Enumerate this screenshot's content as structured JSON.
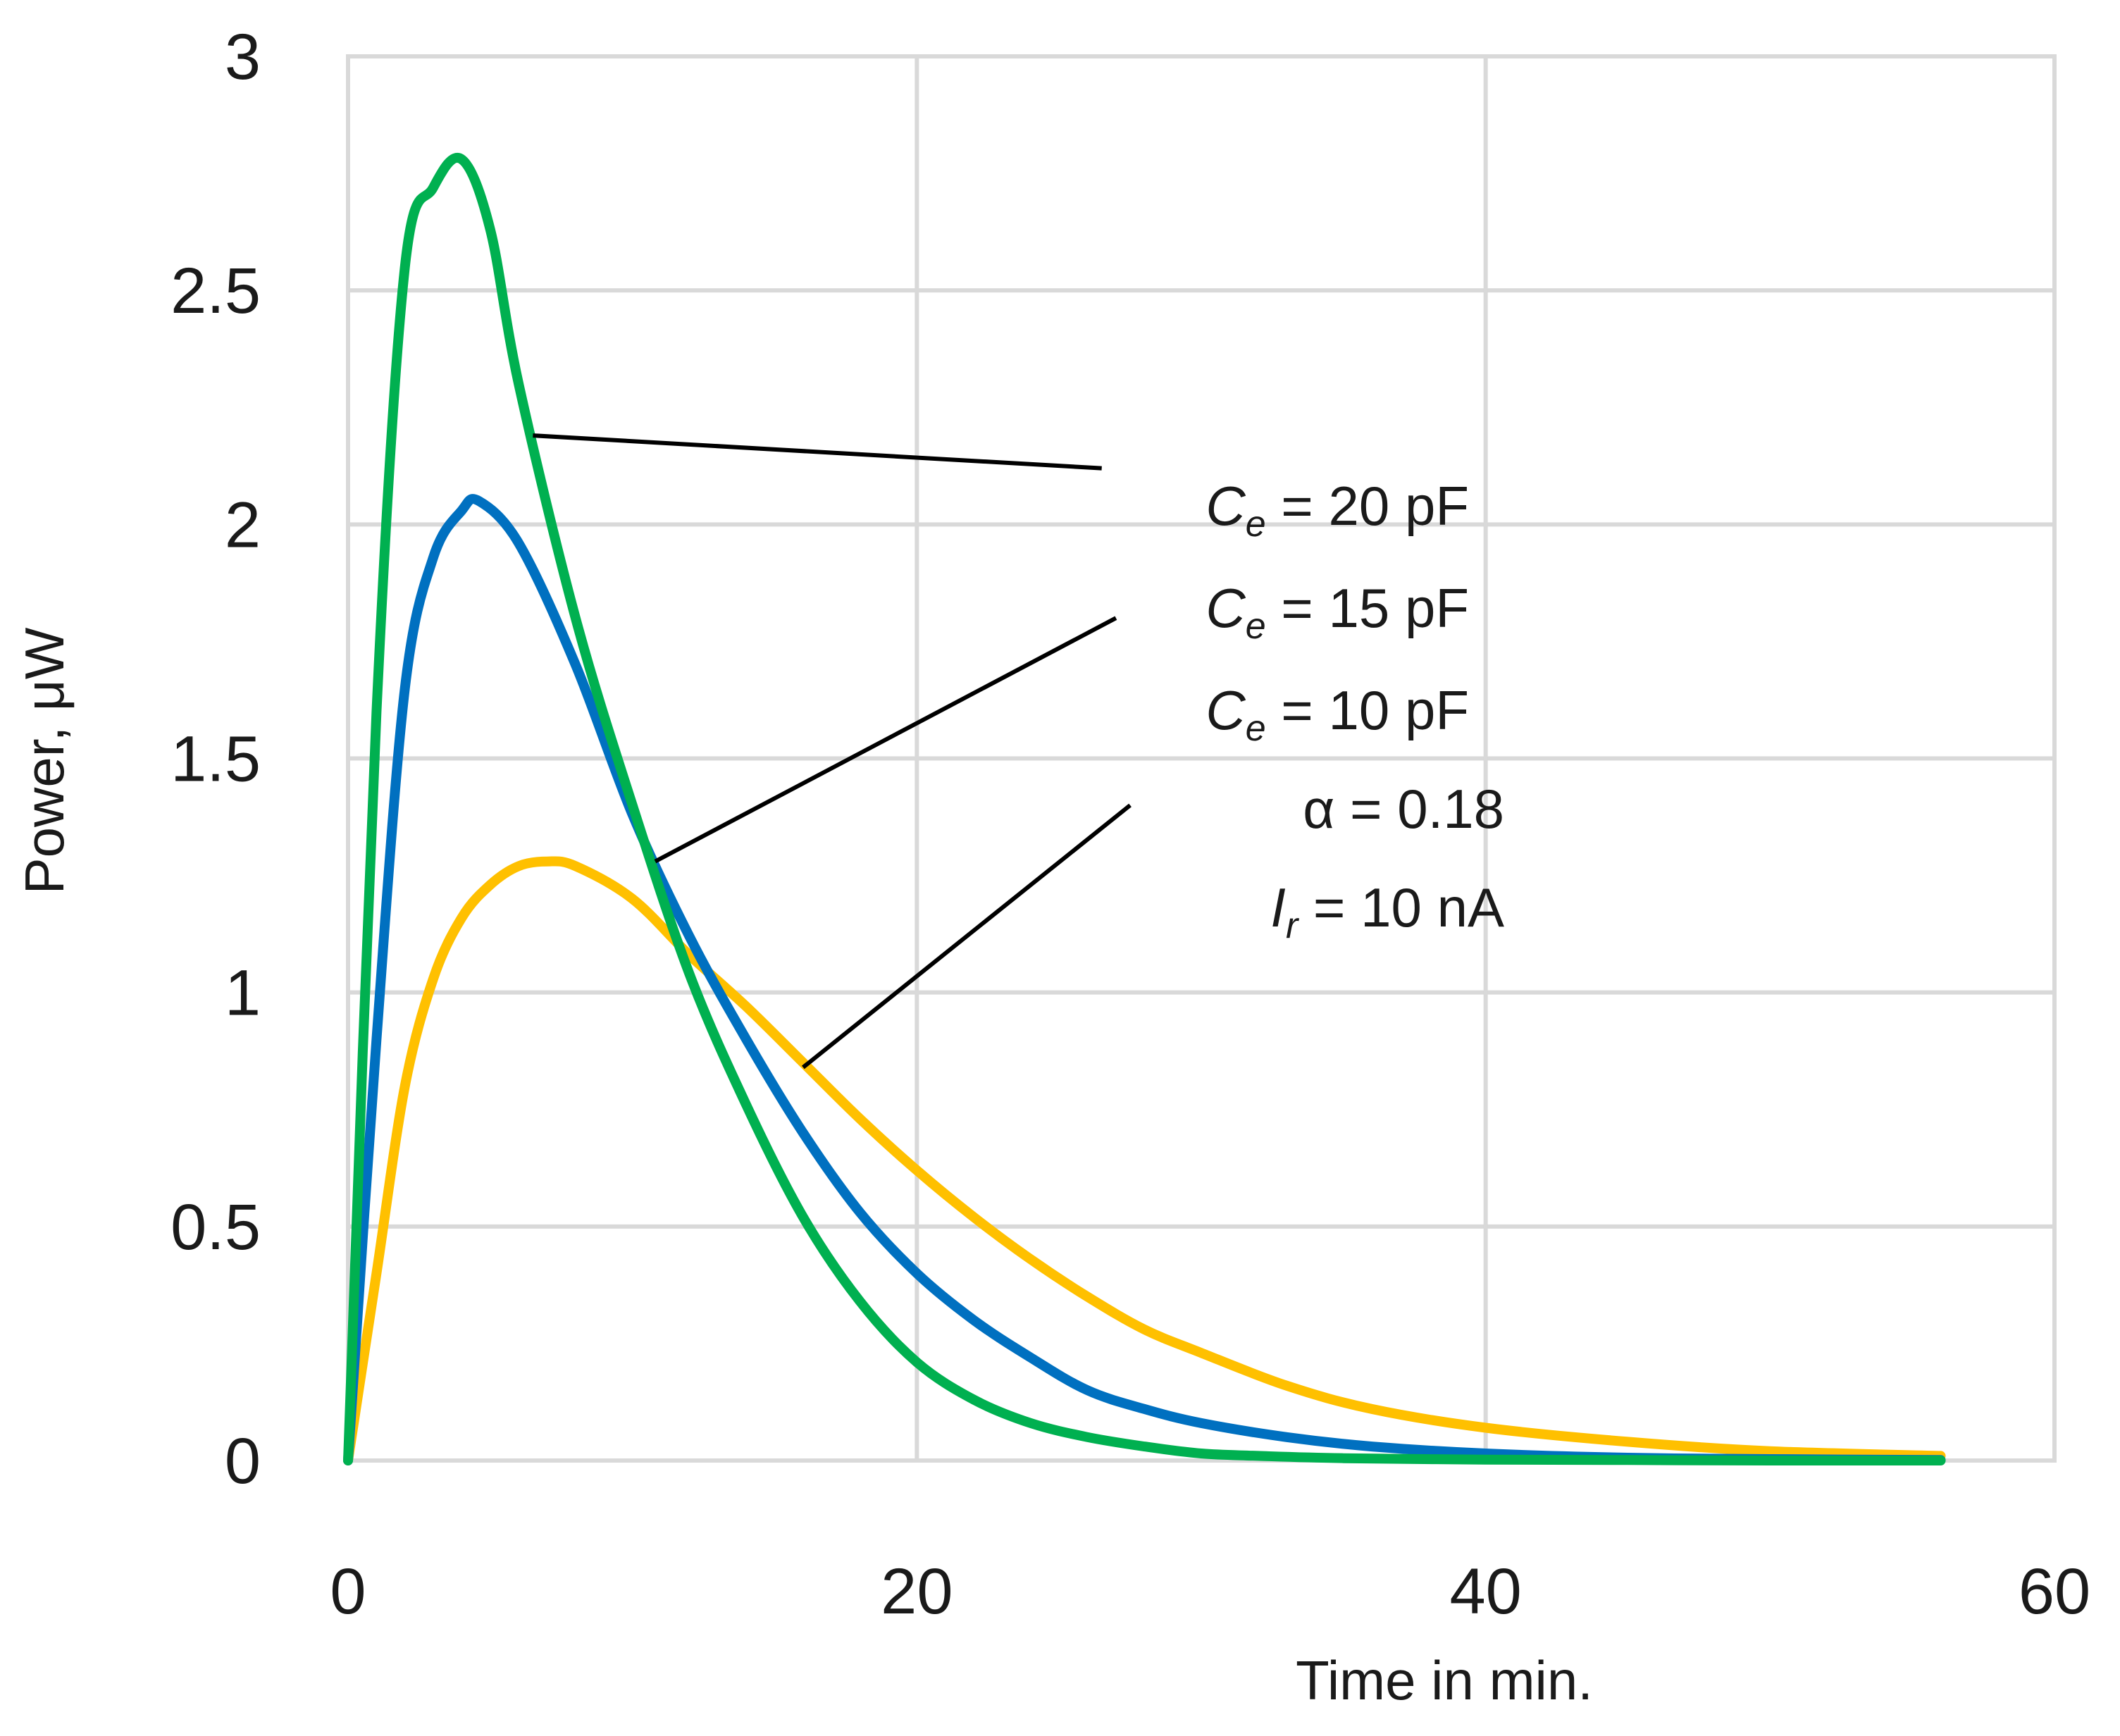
{
  "chart_data": {
    "type": "line",
    "title": "",
    "xlabel": "Time in min.",
    "ylabel": "Power, μW",
    "xlim": [
      0,
      60
    ],
    "ylim": [
      0,
      3
    ],
    "x_ticks": [
      "0",
      "20",
      "40",
      "60"
    ],
    "y_ticks": [
      "0",
      "0.5",
      "1",
      "1.5",
      "2",
      "2.5",
      "3"
    ],
    "grid": true,
    "series": [
      {
        "name": "Ce = 20 pF",
        "color": "#00b050",
        "x": [
          0,
          1,
          2,
          3,
          4,
          5,
          6,
          8,
          10,
          12,
          14,
          16,
          18,
          20,
          22,
          24,
          26,
          28,
          30,
          32,
          35,
          40,
          45,
          50,
          56
        ],
        "y": [
          0,
          1.6,
          2.55,
          2.72,
          2.78,
          2.63,
          2.3,
          1.8,
          1.4,
          1.04,
          0.76,
          0.52,
          0.34,
          0.21,
          0.13,
          0.08,
          0.05,
          0.03,
          0.015,
          0.01,
          0.005,
          0.002,
          0.001,
          0.0,
          0.0
        ]
      },
      {
        "name": "Ce = 15 pF",
        "color": "#0070c0",
        "x": [
          0,
          1,
          2,
          3,
          4,
          4.6,
          6,
          8,
          10,
          12,
          14,
          16,
          18,
          20,
          22,
          24,
          26,
          28,
          30,
          33,
          36,
          40,
          45,
          50,
          56
        ],
        "y": [
          0,
          0.9,
          1.65,
          1.93,
          2.03,
          2.05,
          1.96,
          1.7,
          1.38,
          1.12,
          0.9,
          0.7,
          0.53,
          0.4,
          0.3,
          0.22,
          0.15,
          0.11,
          0.08,
          0.05,
          0.03,
          0.015,
          0.006,
          0.003,
          0.001
        ]
      },
      {
        "name": "Ce = 10 pF",
        "color": "#ffc000",
        "x": [
          0,
          1,
          2,
          3,
          4,
          5,
          6,
          7,
          8,
          10,
          12,
          14,
          16,
          18,
          20,
          22,
          24,
          26,
          28,
          30,
          33,
          36,
          40,
          45,
          50,
          56
        ],
        "y": [
          0,
          0.4,
          0.8,
          1.03,
          1.16,
          1.23,
          1.27,
          1.28,
          1.27,
          1.2,
          1.08,
          0.97,
          0.85,
          0.73,
          0.62,
          0.52,
          0.43,
          0.35,
          0.28,
          0.23,
          0.16,
          0.11,
          0.07,
          0.04,
          0.02,
          0.01
        ]
      }
    ],
    "annotations": {
      "lines": [
        {
          "var": "C",
          "sub": "e",
          "rest": " = 20 pF"
        },
        {
          "var": "C",
          "sub": "e",
          "rest": " = 15 pF"
        },
        {
          "var": "C",
          "sub": "e",
          "rest": " = 10 pF"
        },
        {
          "var": "",
          "sub": "",
          "rest": "α = 0.18"
        },
        {
          "var": "I",
          "sub": "r",
          "rest": " = 10 nA"
        }
      ],
      "leaders": [
        {
          "series": "Ce = 20 pF",
          "from": [
            6.5,
            2.19
          ],
          "to": [
            26.5,
            2.12
          ]
        },
        {
          "series": "Ce = 15 pF",
          "from": [
            10.8,
            1.28
          ],
          "to": [
            27.0,
            1.8
          ]
        },
        {
          "series": "Ce = 10 pF",
          "from": [
            16.0,
            0.84
          ],
          "to": [
            27.5,
            1.4
          ]
        }
      ]
    }
  }
}
